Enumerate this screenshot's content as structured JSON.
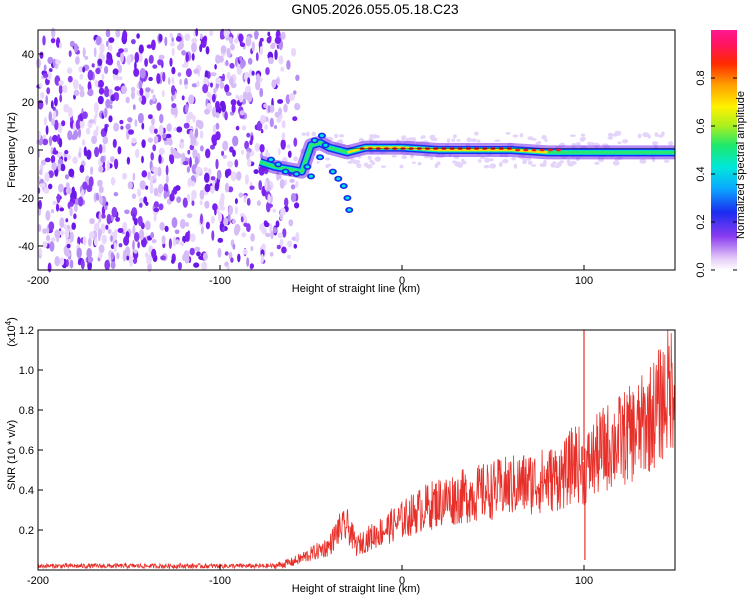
{
  "title": "GN05.2026.055.05.18.C23",
  "chart_data": [
    {
      "type": "heatmap",
      "name": "spectrogram",
      "xlabel": "Height of straight line (km)",
      "ylabel": "Frequency (Hz)",
      "xlim": [
        -200,
        150
      ],
      "ylim": [
        -50,
        50
      ],
      "x_ticks": [
        -200,
        -100,
        0,
        100
      ],
      "y_ticks": [
        -40,
        -20,
        0,
        20,
        40
      ],
      "noise_region_x": [
        -200,
        -65
      ],
      "trace": [
        {
          "x": -78,
          "y": -5
        },
        {
          "x": -70,
          "y": -7
        },
        {
          "x": -62,
          "y": -8
        },
        {
          "x": -55,
          "y": -9
        },
        {
          "x": -50,
          "y": 2
        },
        {
          "x": -45,
          "y": 3
        },
        {
          "x": -40,
          "y": 1
        },
        {
          "x": -30,
          "y": -1
        },
        {
          "x": -20,
          "y": 1
        },
        {
          "x": -10,
          "y": 1
        },
        {
          "x": 0,
          "y": 1
        },
        {
          "x": 20,
          "y": 0
        },
        {
          "x": 40,
          "y": 0
        },
        {
          "x": 60,
          "y": 0
        },
        {
          "x": 80,
          "y": -1
        },
        {
          "x": 95,
          "y": -1
        },
        {
          "x": 110,
          "y": -1
        },
        {
          "x": 130,
          "y": -1
        },
        {
          "x": 150,
          "y": -1
        }
      ],
      "colorbar": {
        "label": "Normalized spectral amplitude",
        "range": [
          0,
          1
        ],
        "ticks": [
          "0.0",
          "0.2",
          "0.4",
          "0.6",
          "0.8"
        ]
      }
    },
    {
      "type": "line",
      "name": "snr",
      "xlabel": "Height of straight line (km)",
      "ylabel": "SNR (10 * v/v)",
      "y_multiplier": "(x10",
      "y_multiplier_exp": "4",
      "xlim": [
        -200,
        150
      ],
      "ylim": [
        0,
        1.2
      ],
      "x_ticks": [
        -200,
        -100,
        0,
        100
      ],
      "y_ticks": [
        "0.2",
        "0.4",
        "0.6",
        "0.8",
        "1.0",
        "1.2"
      ],
      "color": "#e8302a",
      "series": [
        {
          "name": "SNR",
          "x": [
            -200,
            -150,
            -100,
            -70,
            -60,
            -50,
            -40,
            -35,
            -30,
            -25,
            -20,
            -10,
            0,
            10,
            20,
            40,
            60,
            80,
            90,
            95,
            100,
            105,
            110,
            120,
            130,
            140,
            150
          ],
          "y": [
            0.02,
            0.02,
            0.02,
            0.02,
            0.04,
            0.08,
            0.12,
            0.2,
            0.22,
            0.12,
            0.15,
            0.2,
            0.25,
            0.3,
            0.34,
            0.38,
            0.42,
            0.45,
            0.48,
            0.55,
            0.5,
            0.55,
            0.6,
            0.65,
            0.7,
            0.8,
            0.95
          ]
        }
      ],
      "spikes": [
        {
          "x": 100,
          "y": 1.2
        },
        {
          "x": 100.5,
          "y": 0.05
        }
      ]
    }
  ]
}
